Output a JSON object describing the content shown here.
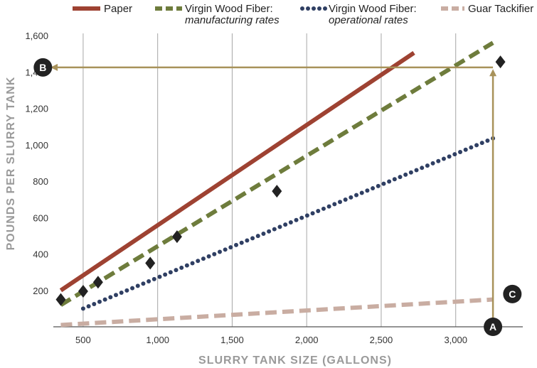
{
  "chart_data": {
    "type": "line",
    "xlabel": "SLURRY TANK SIZE (GALLONS)",
    "ylabel": "POUNDS PER SLURRY TANK",
    "xlim": [
      300,
      3450
    ],
    "ylim": [
      0,
      1600
    ],
    "x_ticks": [
      500,
      1000,
      1500,
      2000,
      2500,
      3000
    ],
    "x_tick_labels": [
      "500",
      "1,000",
      "1,500",
      "2,000",
      "2,500",
      "3,000"
    ],
    "y_ticks": [
      200,
      400,
      600,
      800,
      1000,
      1200,
      1400,
      1600
    ],
    "y_tick_labels": [
      "200",
      "400",
      "600",
      "800",
      "1,000",
      "1,200",
      "1,400",
      "1,600"
    ],
    "grid": "vertical",
    "legend_position": "top",
    "series": [
      {
        "name": "Paper",
        "style": "solid",
        "color": "#9e4232",
        "x": [
          350,
          2720
        ],
        "y": [
          200,
          1505
        ]
      },
      {
        "name": "Virgin Wood Fiber:",
        "subtitle": "manufacturing rates",
        "style": "dashed",
        "color": "#6e7c3c",
        "x": [
          350,
          3250
        ],
        "y": [
          120,
          1560
        ]
      },
      {
        "name": "Virgin Wood Fiber:",
        "subtitle": "operational rates",
        "style": "dotted",
        "color": "#2f3f63",
        "x": [
          500,
          3250
        ],
        "y": [
          100,
          1035
        ]
      },
      {
        "name": "Guar Tackifier",
        "style": "dashed",
        "color": "#c9ada2",
        "x": [
          350,
          3250
        ],
        "y": [
          10,
          150
        ]
      }
    ],
    "points": [
      {
        "x": 350,
        "y": 150
      },
      {
        "x": 500,
        "y": 195
      },
      {
        "x": 600,
        "y": 245
      },
      {
        "x": 950,
        "y": 350
      },
      {
        "x": 1130,
        "y": 495
      },
      {
        "x": 1800,
        "y": 745
      },
      {
        "x": 3300,
        "y": 1455
      }
    ],
    "annotations": [
      {
        "label": "A",
        "x": 3250,
        "y": 0
      },
      {
        "label": "B",
        "x": 230,
        "y": 1425
      },
      {
        "label": "C",
        "x": 3380,
        "y": 180
      }
    ],
    "guide_arrows": [
      {
        "from": [
          3250,
          0
        ],
        "to": [
          3250,
          1400
        ]
      },
      {
        "from": [
          3250,
          1425
        ],
        "to": [
          300,
          1425
        ]
      }
    ],
    "colors": {
      "guide": "#a8925a",
      "marker": "#222222",
      "grid": "#a6a6a6",
      "axis": "#555555"
    }
  }
}
